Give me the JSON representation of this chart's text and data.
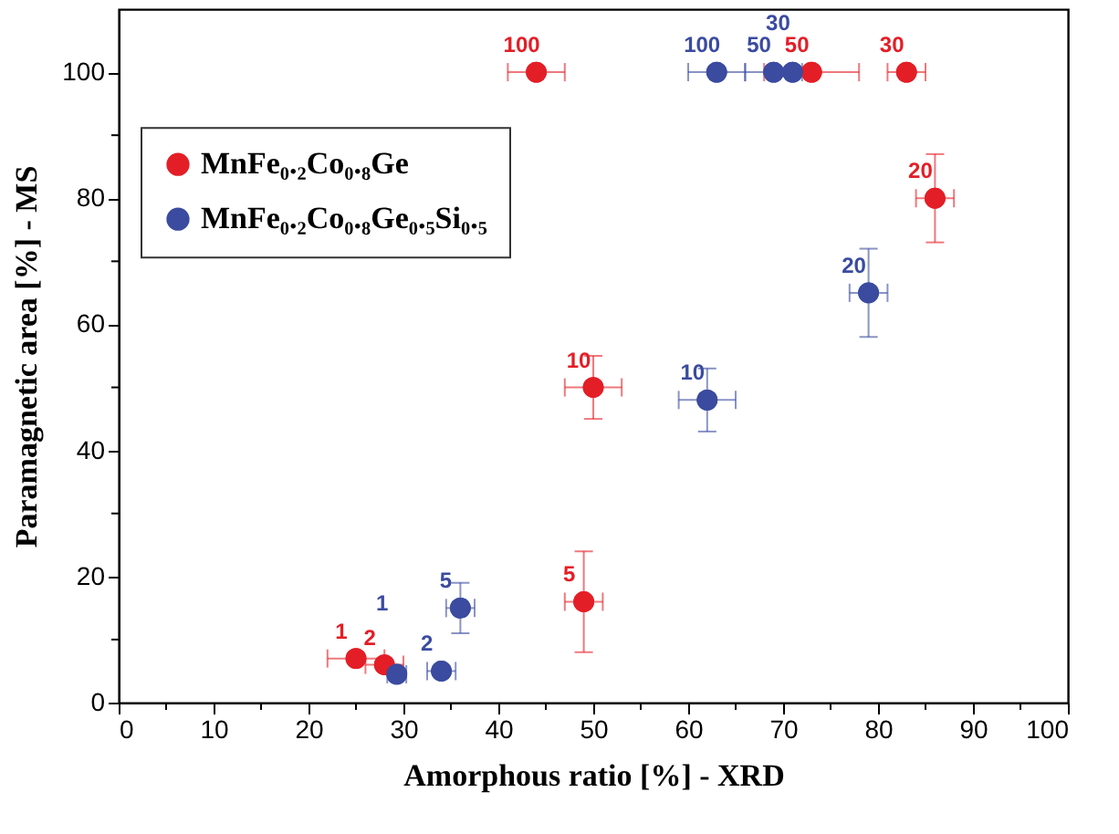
{
  "chart_data": {
    "type": "scatter",
    "xlabel": "Amorphous ratio [%] - XRD",
    "ylabel": "Paramagnetic area [%] - MS",
    "xlim": [
      0,
      100
    ],
    "ylim": [
      0,
      110
    ],
    "xticks": [
      0,
      {
        "value": 5,
        "label": null
      },
      10,
      {
        "value": 15,
        "label": null
      },
      20,
      {
        "value": 25,
        "label": null
      },
      30,
      {
        "value": 35,
        "label": null
      },
      40,
      {
        "value": 45,
        "label": null
      },
      50,
      {
        "value": 55,
        "label": null
      },
      60,
      {
        "value": 65,
        "label": null
      },
      70,
      {
        "value": 75,
        "label": null
      },
      80,
      {
        "value": 85,
        "label": null
      },
      90,
      {
        "value": 95,
        "label": null
      },
      100
    ],
    "yticks": [
      0,
      {
        "value": 10,
        "label": null
      },
      20,
      {
        "value": 30,
        "label": null
      },
      40,
      {
        "value": 50,
        "label": null
      },
      60,
      {
        "value": 70,
        "label": null
      },
      80,
      {
        "value": 90,
        "label": null
      },
      100
    ],
    "grid": false,
    "legend": "top left",
    "marker": "circle",
    "series": [
      {
        "name": "MnFe₀.₂Co₀.₈Ge",
        "color": "#e41e26",
        "x": [
          25,
          28,
          49,
          50,
          86,
          83,
          73,
          44
        ],
        "values": [
          7,
          6,
          16,
          50,
          80,
          100,
          100,
          100
        ],
        "xerrors": [
          3,
          2,
          2,
          3,
          2,
          2,
          5,
          3
        ],
        "errors": [
          null,
          null,
          8,
          5,
          7,
          null,
          null,
          null
        ]
      },
      {
        "name": "MnFe₀.₂Co₀.₈Ge₀.₅Si₀.₅",
        "color": "#3a4ba0",
        "x": [
          29.3,
          34,
          36,
          62,
          79,
          71,
          69,
          63
        ],
        "values": [
          4.5,
          5,
          15,
          48,
          65,
          100,
          100,
          100
        ],
        "xerrors": [
          1,
          1.5,
          1.5,
          3,
          2,
          2,
          3,
          3
        ],
        "errors": [
          null,
          null,
          4,
          5,
          7,
          null,
          null,
          null
        ]
      }
    ],
    "annotations": [
      {
        "text": "1",
        "x": 25,
        "y": 7
      },
      {
        "text": "2",
        "x": 28,
        "y": 6
      },
      {
        "text": "5",
        "x": 49,
        "y": 16
      },
      {
        "text": "10",
        "x": 50,
        "y": 50
      },
      {
        "text": "20",
        "x": 86,
        "y": 80
      },
      {
        "text": "30",
        "x": 83,
        "y": 100
      },
      {
        "text": "50",
        "x": 73,
        "y": 100
      },
      {
        "text": "100",
        "x": 44,
        "y": 100
      },
      {
        "text": "1",
        "x": 29.3,
        "y": 4.5
      },
      {
        "text": "2",
        "x": 34,
        "y": 5
      },
      {
        "text": "5",
        "x": 36,
        "y": 15
      },
      {
        "text": "10",
        "x": 62,
        "y": 48
      },
      {
        "text": "20",
        "x": 79,
        "y": 65
      },
      {
        "text": "30",
        "x": 71,
        "y": 100
      },
      {
        "text": "50",
        "x": 69,
        "y": 100
      },
      {
        "text": "100",
        "x": 63,
        "y": 100
      }
    ]
  }
}
